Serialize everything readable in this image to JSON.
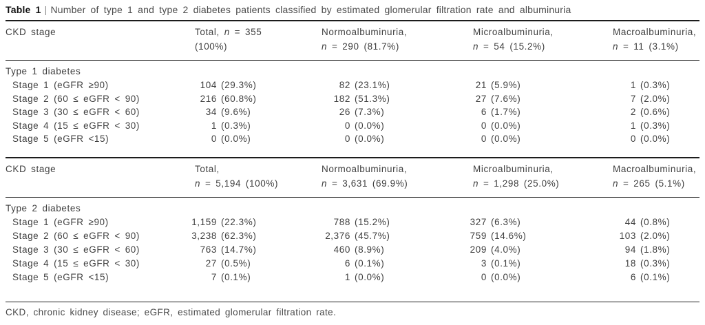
{
  "caption": {
    "label": "Table 1",
    "divider": "|",
    "title": "Number of type 1 and type 2 diabetes patients classified by estimated glomerular filtration rate and albuminuria"
  },
  "sections": [
    {
      "stage_header": "CKD stage",
      "group_label": "Type 1 diabetes",
      "columns": [
        {
          "l1_pre": "Total, ",
          "l1_n": "n",
          "l1_post": " = 355",
          "l2_pre": "(100%)",
          "l2_n": "",
          "l2_post": ""
        },
        {
          "l1_pre": "Normoalbuminuria,",
          "l1_n": "",
          "l1_post": "",
          "l2_pre": "",
          "l2_n": "n",
          "l2_post": " = 290 (81.7%)"
        },
        {
          "l1_pre": "Microalbuminuria,",
          "l1_n": "",
          "l1_post": "",
          "l2_pre": "",
          "l2_n": "n",
          "l2_post": " = 54 (15.2%)"
        },
        {
          "l1_pre": "Macroalbuminuria,",
          "l1_n": "",
          "l1_post": "",
          "l2_pre": "",
          "l2_n": "n",
          "l2_post": " = 11 (3.1%)"
        }
      ],
      "rows": [
        {
          "label": "Stage 1 (eGFR ≥90)",
          "cells": [
            [
              "104",
              "(29.3%)"
            ],
            [
              "82",
              "(23.1%)"
            ],
            [
              "21",
              "(5.9%)"
            ],
            [
              "1",
              "(0.3%)"
            ]
          ]
        },
        {
          "label": "Stage 2 (60 ≤ eGFR < 90)",
          "cells": [
            [
              "216",
              "(60.8%)"
            ],
            [
              "182",
              "(51.3%)"
            ],
            [
              "27",
              "(7.6%)"
            ],
            [
              "7",
              "(2.0%)"
            ]
          ]
        },
        {
          "label": "Stage 3 (30 ≤ eGFR < 60)",
          "cells": [
            [
              "34",
              "(9.6%)"
            ],
            [
              "26",
              "(7.3%)"
            ],
            [
              "6",
              "(1.7%)"
            ],
            [
              "2",
              "(0.6%)"
            ]
          ]
        },
        {
          "label": "Stage 4 (15 ≤ eGFR < 30)",
          "cells": [
            [
              "1",
              "(0.3%)"
            ],
            [
              "0",
              "(0.0%)"
            ],
            [
              "0",
              "(0.0%)"
            ],
            [
              "1",
              "(0.3%)"
            ]
          ]
        },
        {
          "label": "Stage 5 (eGFR <15)",
          "cells": [
            [
              "0",
              "(0.0%)"
            ],
            [
              "0",
              "(0.0%)"
            ],
            [
              "0",
              "(0.0%)"
            ],
            [
              "0",
              "(0.0%)"
            ]
          ]
        }
      ]
    },
    {
      "stage_header": "CKD stage",
      "group_label": "Type 2 diabetes",
      "columns": [
        {
          "l1_pre": "Total,",
          "l1_n": "",
          "l1_post": "",
          "l2_pre": "",
          "l2_n": "n",
          "l2_post": " = 5,194 (100%)"
        },
        {
          "l1_pre": "Normoalbuminuria,",
          "l1_n": "",
          "l1_post": "",
          "l2_pre": "",
          "l2_n": "n",
          "l2_post": " = 3,631 (69.9%)"
        },
        {
          "l1_pre": "Microalbuminuria,",
          "l1_n": "",
          "l1_post": "",
          "l2_pre": "",
          "l2_n": "n",
          "l2_post": " = 1,298 (25.0%)"
        },
        {
          "l1_pre": "Macroalbuminuria,",
          "l1_n": "",
          "l1_post": "",
          "l2_pre": "",
          "l2_n": "n",
          "l2_post": " = 265 (5.1%)"
        }
      ],
      "rows": [
        {
          "label": "Stage 1 (eGFR ≥90)",
          "cells": [
            [
              "1,159",
              "(22.3%)"
            ],
            [
              "788",
              "(15.2%)"
            ],
            [
              "327",
              "(6.3%)"
            ],
            [
              "44",
              "(0.8%)"
            ]
          ]
        },
        {
          "label": "Stage 2 (60 ≤ eGFR < 90)",
          "cells": [
            [
              "3,238",
              "(62.3%)"
            ],
            [
              "2,376",
              "(45.7%)"
            ],
            [
              "759",
              "(14.6%)"
            ],
            [
              "103",
              "(2.0%)"
            ]
          ]
        },
        {
          "label": "Stage 3 (30 ≤ eGFR < 60)",
          "cells": [
            [
              "763",
              "(14.7%)"
            ],
            [
              "460",
              "(8.9%)"
            ],
            [
              "209",
              "(4.0%)"
            ],
            [
              "94",
              "(1.8%)"
            ]
          ]
        },
        {
          "label": "Stage 4 (15 ≤ eGFR < 30)",
          "cells": [
            [
              "27",
              "(0.5%)"
            ],
            [
              "6",
              "(0.1%)"
            ],
            [
              "3",
              "(0.1%)"
            ],
            [
              "18",
              "(0.3%)"
            ]
          ]
        },
        {
          "label": "Stage 5 (eGFR <15)",
          "cells": [
            [
              "7",
              "(0.1%)"
            ],
            [
              "1",
              "(0.0%)"
            ],
            [
              "0",
              "(0.0%)"
            ],
            [
              "6",
              "(0.1%)"
            ]
          ]
        }
      ]
    }
  ],
  "footnote": "CKD, chronic kidney disease; eGFR, estimated glomerular filtration rate.",
  "colors": {
    "rule": "#1c1c1c",
    "text": "#3f3f3f",
    "caption_label": "#111111"
  }
}
